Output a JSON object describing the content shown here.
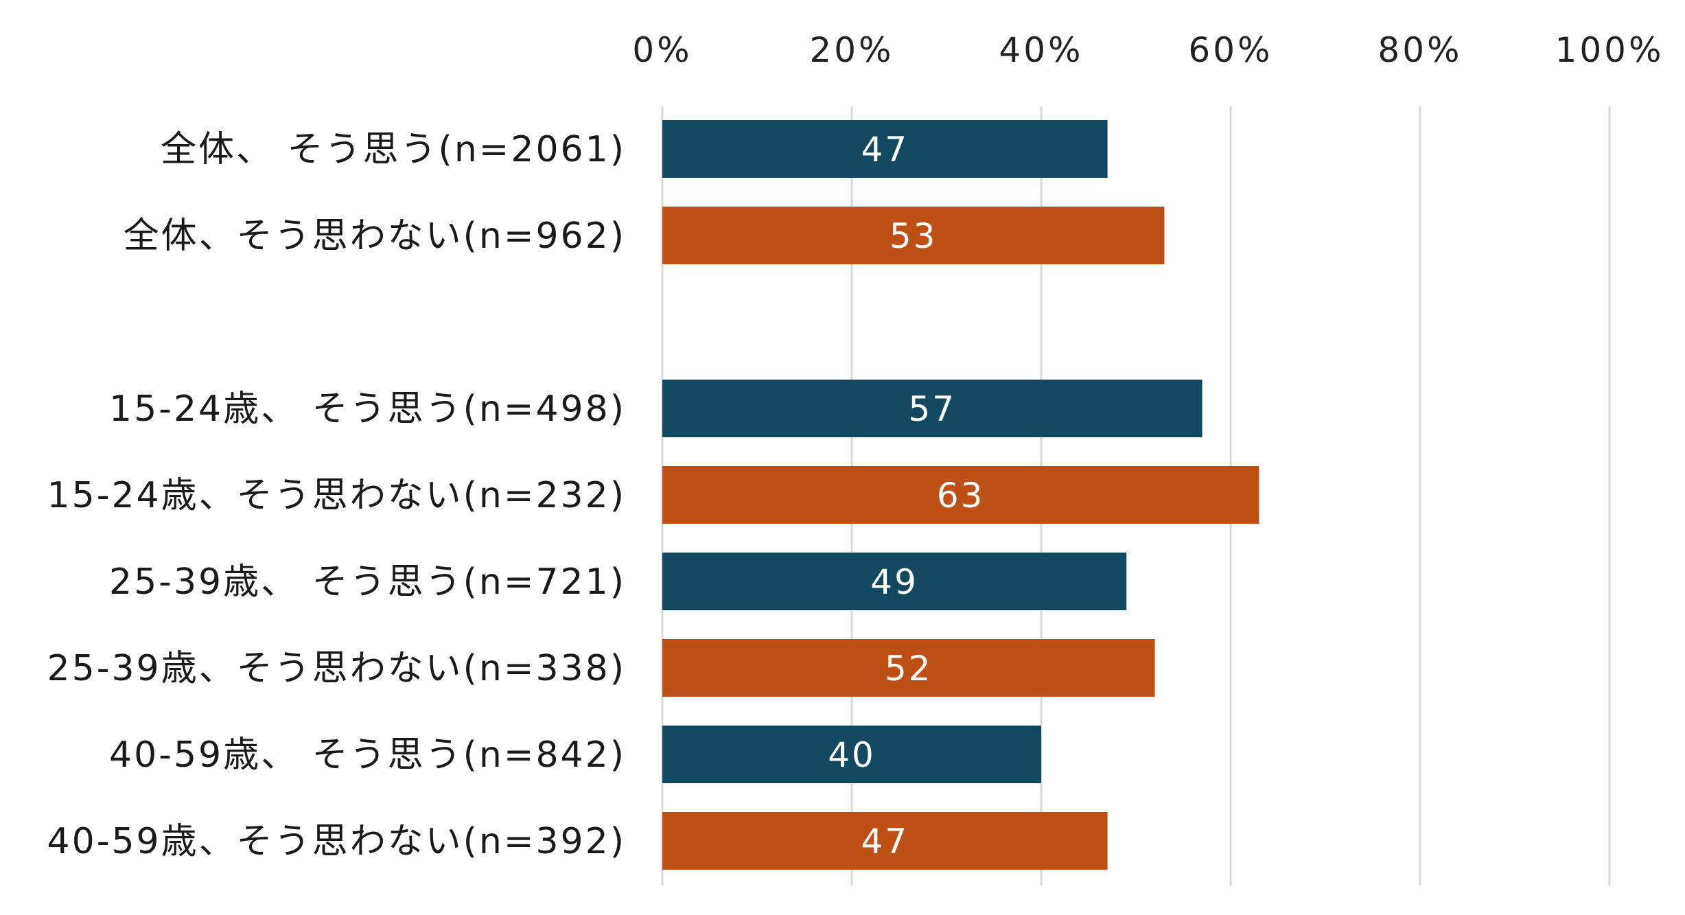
{
  "chart_data": {
    "type": "bar",
    "orientation": "horizontal",
    "xlim": [
      0,
      100
    ],
    "x_ticks": [
      "0%",
      "20%",
      "40%",
      "60%",
      "80%",
      "100%"
    ],
    "x_tick_values": [
      0,
      20,
      40,
      60,
      80,
      100
    ],
    "grid": true,
    "colors": {
      "agree": "#134960",
      "disagree": "#BE4F15"
    },
    "rows": [
      {
        "label": "全体、 そう思う(n=2061)",
        "value": 47,
        "group": "agree"
      },
      {
        "label": "全体、そう思わない(n=962)",
        "value": 53,
        "group": "disagree"
      },
      {
        "label": "",
        "value": null,
        "group": "spacer"
      },
      {
        "label": "15-24歳、 そう思う(n=498)",
        "value": 57,
        "group": "agree"
      },
      {
        "label": "15-24歳、そう思わない(n=232)",
        "value": 63,
        "group": "disagree"
      },
      {
        "label": "25-39歳、 そう思う(n=721)",
        "value": 49,
        "group": "agree"
      },
      {
        "label": "25-39歳、そう思わない(n=338)",
        "value": 52,
        "group": "disagree"
      },
      {
        "label": "40-59歳、 そう思う(n=842)",
        "value": 40,
        "group": "agree"
      },
      {
        "label": "40-59歳、そう思わない(n=392)",
        "value": 47,
        "group": "disagree"
      }
    ]
  }
}
